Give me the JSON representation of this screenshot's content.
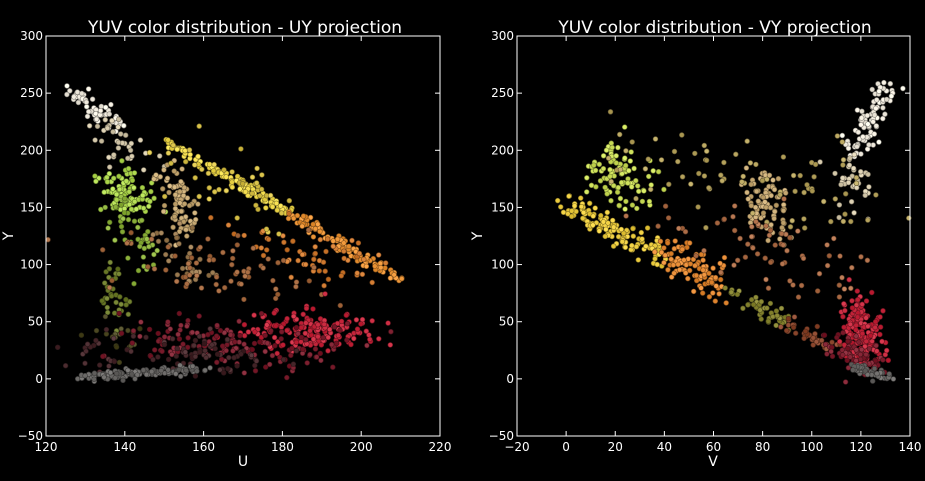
{
  "chart_data": [
    {
      "type": "scatter",
      "title": "YUV color distribution - UY projection",
      "xlabel": "U",
      "ylabel": "Y",
      "xlim": [
        120,
        220
      ],
      "ylim": [
        -50,
        300
      ],
      "xticks": [
        120,
        140,
        160,
        180,
        200,
        220
      ],
      "yticks": [
        -50,
        0,
        50,
        100,
        150,
        200,
        250,
        300
      ],
      "xtick_labels": [
        "120",
        "140",
        "160",
        "180",
        "200",
        "220"
      ],
      "ytick_labels": [
        "−50",
        "0",
        "50",
        "100",
        "150",
        "200",
        "250",
        "300"
      ],
      "grid": false,
      "legend": "none",
      "background": "#000000",
      "clusters": [
        {
          "desc": "white diagonal top-left",
          "x0": 126,
          "y0": 256,
          "x1": 138,
          "y1": 222,
          "spread": [
            2,
            4
          ],
          "n": 55,
          "color": "#f2ecdf"
        },
        {
          "desc": "light beige band",
          "x0": 133,
          "y0": 225,
          "x1": 145,
          "y1": 190,
          "spread": [
            3,
            6
          ],
          "n": 35,
          "color": "#d8ccae"
        },
        {
          "desc": "yellow-green cluster",
          "x0": 138,
          "y0": 175,
          "x1": 142,
          "y1": 152,
          "spread": [
            3,
            7
          ],
          "n": 90,
          "color": "#b2dc52"
        },
        {
          "desc": "green column",
          "x0": 138,
          "y0": 150,
          "x1": 146,
          "y1": 100,
          "spread": [
            2,
            8
          ],
          "n": 45,
          "color": "#8fb43e"
        },
        {
          "desc": "olive column",
          "x0": 136,
          "y0": 95,
          "x1": 138,
          "y1": 55,
          "spread": [
            2,
            8
          ],
          "n": 35,
          "color": "#6e7d2c"
        },
        {
          "desc": "dark olive low",
          "x0": 134,
          "y0": 50,
          "x1": 140,
          "y1": 25,
          "spread": [
            3,
            6
          ],
          "n": 20,
          "color": "#4e4a24"
        },
        {
          "desc": "tan cluster",
          "x0": 151,
          "y0": 180,
          "x1": 156,
          "y1": 130,
          "spread": [
            2,
            8
          ],
          "n": 85,
          "color": "#c8aa74"
        },
        {
          "desc": "tan tail",
          "x0": 152,
          "y0": 125,
          "x1": 158,
          "y1": 85,
          "spread": [
            3,
            8
          ],
          "n": 35,
          "color": "#9c7c52"
        },
        {
          "desc": "yellow upper diagonal",
          "x0": 150,
          "y0": 208,
          "x1": 182,
          "y1": 145,
          "spread": [
            1,
            2
          ],
          "n": 110,
          "color": "#f3dc4e"
        },
        {
          "desc": "orange diagonal",
          "x0": 182,
          "y0": 145,
          "x1": 210,
          "y1": 86,
          "spread": [
            1,
            2.5
          ],
          "n": 100,
          "color": "#eb9436"
        },
        {
          "desc": "orange scatter below diagonal",
          "x0": 175,
          "y0": 120,
          "x1": 200,
          "y1": 95,
          "spread": [
            6,
            10
          ],
          "n": 60,
          "color": "#d27c32"
        },
        {
          "desc": "sparse yellow interior",
          "x0": 155,
          "y0": 190,
          "x1": 175,
          "y1": 150,
          "spread": [
            8,
            14
          ],
          "n": 45,
          "color": "#d9c24a"
        },
        {
          "desc": "mid interior brown",
          "x0": 145,
          "y0": 110,
          "x1": 180,
          "y1": 80,
          "spread": [
            10,
            14
          ],
          "n": 70,
          "color": "#a66a40"
        },
        {
          "desc": "crimson cluster",
          "x0": 180,
          "y0": 48,
          "x1": 194,
          "y1": 40,
          "spread": [
            7,
            8
          ],
          "n": 170,
          "color": "#c8283e"
        },
        {
          "desc": "dark red band",
          "x0": 150,
          "y0": 40,
          "x1": 185,
          "y1": 20,
          "spread": [
            10,
            10
          ],
          "n": 150,
          "color": "#7e2030"
        },
        {
          "desc": "dim lower cloud",
          "x0": 140,
          "y0": 25,
          "x1": 170,
          "y1": 15,
          "spread": [
            10,
            8
          ],
          "n": 90,
          "color": "#4a2a2e"
        },
        {
          "desc": "gray bottom diagonal",
          "x0": 129,
          "y0": 1,
          "x1": 160,
          "y1": 9,
          "spread": [
            2,
            2
          ],
          "n": 120,
          "color": "#6c6a68"
        }
      ]
    },
    {
      "type": "scatter",
      "title": "YUV color distribution - VY projection",
      "xlabel": "V",
      "ylabel": "Y",
      "xlim": [
        -20,
        140
      ],
      "ylim": [
        -50,
        300
      ],
      "xticks": [
        -20,
        0,
        20,
        40,
        60,
        80,
        100,
        120,
        140
      ],
      "yticks": [
        -50,
        0,
        50,
        100,
        150,
        200,
        250,
        300
      ],
      "xtick_labels": [
        "−20",
        "0",
        "20",
        "40",
        "60",
        "80",
        "100",
        "120",
        "140"
      ],
      "ytick_labels": [
        "−50",
        "0",
        "50",
        "100",
        "150",
        "200",
        "250",
        "300"
      ],
      "grid": false,
      "legend": "none",
      "background": "#000000",
      "clusters": [
        {
          "desc": "white top-right",
          "x0": 118,
          "y0": 200,
          "x1": 130,
          "y1": 255,
          "spread": [
            3,
            5
          ],
          "n": 80,
          "color": "#f2ecdf"
        },
        {
          "desc": "light beige column",
          "x0": 112,
          "y0": 190,
          "x1": 120,
          "y1": 150,
          "spread": [
            4,
            8
          ],
          "n": 35,
          "color": "#d8ccae"
        },
        {
          "desc": "tan cluster",
          "x0": 80,
          "y0": 175,
          "x1": 85,
          "y1": 130,
          "spread": [
            4,
            8
          ],
          "n": 85,
          "color": "#c8aa74"
        },
        {
          "desc": "yellow-green cluster",
          "x0": 15,
          "y0": 195,
          "x1": 28,
          "y1": 160,
          "spread": [
            6,
            8
          ],
          "n": 90,
          "color": "#cde05a"
        },
        {
          "desc": "yellow lower diagonal",
          "x0": 0,
          "y0": 150,
          "x1": 40,
          "y1": 110,
          "spread": [
            2,
            6
          ],
          "n": 130,
          "color": "#edcd40"
        },
        {
          "desc": "orange diagonal",
          "x0": 40,
          "y0": 115,
          "x1": 65,
          "y1": 78,
          "spread": [
            3,
            8
          ],
          "n": 100,
          "color": "#e58a34"
        },
        {
          "desc": "olive diagonal",
          "x0": 65,
          "y0": 78,
          "x1": 90,
          "y1": 50,
          "spread": [
            3,
            4
          ],
          "n": 45,
          "color": "#8c8a36"
        },
        {
          "desc": "brown diagonal",
          "x0": 88,
          "y0": 50,
          "x1": 110,
          "y1": 25,
          "spread": [
            3,
            4
          ],
          "n": 40,
          "color": "#8e4a30"
        },
        {
          "desc": "crimson cluster",
          "x0": 118,
          "y0": 60,
          "x1": 122,
          "y1": 20,
          "spread": [
            4,
            10
          ],
          "n": 200,
          "color": "#c8283e"
        },
        {
          "desc": "dark red lower",
          "x0": 112,
          "y0": 30,
          "x1": 124,
          "y1": 10,
          "spread": [
            4,
            6
          ],
          "n": 70,
          "color": "#802030"
        },
        {
          "desc": "gray bottom",
          "x0": 118,
          "y0": 10,
          "x1": 130,
          "y1": 2,
          "spread": [
            2,
            2
          ],
          "n": 45,
          "color": "#6c6a68"
        },
        {
          "desc": "sparse upper interior",
          "x0": 35,
          "y0": 200,
          "x1": 110,
          "y1": 150,
          "spread": [
            18,
            18
          ],
          "n": 80,
          "color": "#b9a660"
        },
        {
          "desc": "sparse mid interior",
          "x0": 60,
          "y0": 130,
          "x1": 115,
          "y1": 90,
          "spread": [
            15,
            18
          ],
          "n": 70,
          "color": "#b0704a"
        }
      ]
    }
  ]
}
